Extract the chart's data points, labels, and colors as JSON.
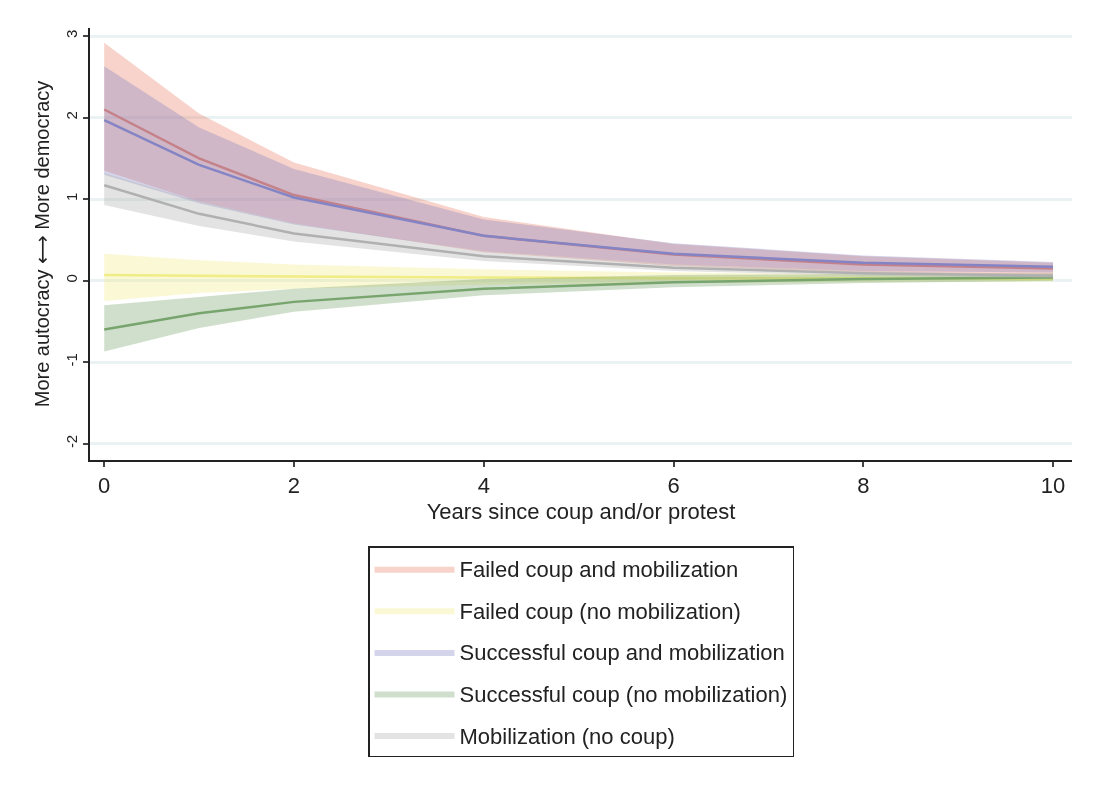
{
  "chart_data": {
    "type": "line",
    "xlabel": "Years since coup and/or protest",
    "ylabel": "More autocracy ⟷ More democracy",
    "x": [
      0,
      1,
      2,
      4,
      6,
      8,
      10
    ],
    "series": [
      {
        "name": "Failed coup and mobilization",
        "color": "#e8806a",
        "values": [
          2.1,
          1.5,
          1.05,
          0.55,
          0.32,
          0.2,
          0.15
        ],
        "upper": [
          2.92,
          2.05,
          1.45,
          0.78,
          0.45,
          0.3,
          0.22
        ],
        "lower": [
          1.35,
          0.97,
          0.7,
          0.35,
          0.18,
          0.1,
          0.07
        ]
      },
      {
        "name": "Failed coup (no mobilization)",
        "color": "#f0ec86",
        "values": [
          0.07,
          0.06,
          0.05,
          0.04,
          0.03,
          0.03,
          0.02
        ],
        "upper": [
          0.33,
          0.25,
          0.2,
          0.14,
          0.1,
          0.08,
          0.06
        ],
        "lower": [
          -0.25,
          -0.15,
          -0.1,
          -0.05,
          -0.03,
          -0.02,
          -0.01
        ]
      },
      {
        "name": "Successful coup and mobilization",
        "color": "#8484c4",
        "values": [
          1.97,
          1.42,
          1.02,
          0.55,
          0.33,
          0.22,
          0.17
        ],
        "upper": [
          2.63,
          1.88,
          1.37,
          0.75,
          0.46,
          0.31,
          0.23
        ],
        "lower": [
          1.3,
          0.95,
          0.69,
          0.36,
          0.2,
          0.12,
          0.1
        ]
      },
      {
        "name": "Successful coup (no mobilization)",
        "color": "#78a46e",
        "values": [
          -0.6,
          -0.4,
          -0.26,
          -0.1,
          -0.02,
          0.02,
          0.04
        ],
        "upper": [
          -0.3,
          -0.2,
          -0.1,
          0.02,
          0.07,
          0.08,
          0.09
        ],
        "lower": [
          -0.87,
          -0.58,
          -0.38,
          -0.18,
          -0.08,
          -0.03,
          0.0
        ]
      },
      {
        "name": "Mobilization (no coup)",
        "color": "#b0b0b0",
        "values": [
          1.17,
          0.82,
          0.58,
          0.3,
          0.16,
          0.09,
          0.06
        ],
        "upper": [
          1.32,
          0.97,
          0.7,
          0.36,
          0.2,
          0.12,
          0.08
        ],
        "lower": [
          0.93,
          0.67,
          0.48,
          0.24,
          0.12,
          0.06,
          0.03
        ]
      }
    ],
    "xlim": [
      -0.15,
      10.2
    ],
    "xticks": [
      0,
      2,
      4,
      6,
      8,
      10
    ],
    "ylim": [
      -2.2,
      3.1
    ],
    "yticks": [
      -2,
      -1,
      0,
      1,
      2,
      3
    ],
    "grid": "y",
    "legend": "bottom",
    "marker": "none",
    "line_style": "solid"
  }
}
